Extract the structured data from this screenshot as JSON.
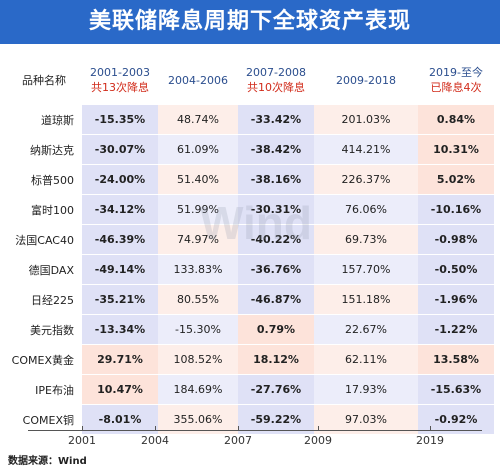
{
  "title": "美联储降息周期下全球资产表现",
  "table": {
    "row_header": "品种名称",
    "columns": [
      {
        "period": "2001-2003",
        "note": "共13次降息"
      },
      {
        "period": "2004-2006",
        "note": ""
      },
      {
        "period": "2007-2008",
        "note": "共10次降息"
      },
      {
        "period": "2009-2018",
        "note": ""
      },
      {
        "period": "2019-至今",
        "note": "已降息4次"
      }
    ],
    "rows": [
      {
        "name": "道琼斯",
        "values": [
          "-15.35%",
          "48.74%",
          "-33.42%",
          "201.03%",
          "0.84%"
        ]
      },
      {
        "name": "纳斯达克",
        "values": [
          "-30.07%",
          "61.09%",
          "-38.42%",
          "414.21%",
          "10.31%"
        ]
      },
      {
        "name": "标普500",
        "values": [
          "-24.00%",
          "51.40%",
          "-38.16%",
          "226.37%",
          "5.02%"
        ]
      },
      {
        "name": "富时100",
        "values": [
          "-34.12%",
          "51.99%",
          "-30.31%",
          "76.06%",
          "-10.16%"
        ]
      },
      {
        "name": "法国CAC40",
        "values": [
          "-46.39%",
          "74.97%",
          "-40.22%",
          "69.73%",
          "-0.98%"
        ]
      },
      {
        "name": "德国DAX",
        "values": [
          "-49.14%",
          "133.83%",
          "-36.76%",
          "157.70%",
          "-0.50%"
        ]
      },
      {
        "name": "日经225",
        "values": [
          "-35.21%",
          "80.55%",
          "-46.87%",
          "151.18%",
          "-1.96%"
        ]
      },
      {
        "name": "美元指数",
        "values": [
          "-13.34%",
          "-15.30%",
          "0.79%",
          "22.67%",
          "-1.22%"
        ]
      },
      {
        "name": "COMEX黄金",
        "values": [
          "29.71%",
          "108.52%",
          "18.12%",
          "62.11%",
          "13.58%"
        ]
      },
      {
        "name": "IPE布油",
        "values": [
          "10.47%",
          "184.69%",
          "-27.76%",
          "17.93%",
          "-15.63%"
        ]
      },
      {
        "name": "COMEX铜",
        "values": [
          "-8.01%",
          "355.06%",
          "-59.22%",
          "97.03%",
          "-0.92%"
        ]
      }
    ]
  },
  "timeline": {
    "labels": [
      "2001",
      "2004",
      "2007",
      "2009",
      "2019"
    ]
  },
  "watermark": "Wind",
  "source": "数据来源：Wind",
  "colors": {
    "title_bg": "#2a69c8",
    "header_text": "#2b4e8e",
    "header_note": "#d12b1a",
    "warm": "#fde3da",
    "cool": "#dfe1f6",
    "warm_light": "#fdeee9",
    "cool_light": "#ecedfa"
  }
}
